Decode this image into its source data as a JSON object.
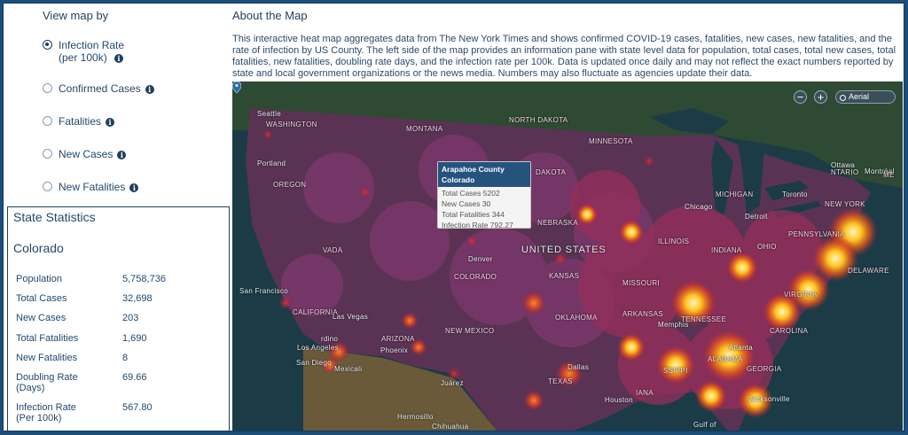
{
  "view_by": {
    "title": "View map by",
    "options": [
      {
        "label_line1": "Infection Rate",
        "label_line2": "(per 100k)",
        "selected": true
      },
      {
        "label_line1": "Confirmed Cases",
        "selected": false
      },
      {
        "label_line1": "Fatalities",
        "selected": false
      },
      {
        "label_line1": "New Cases",
        "selected": false
      },
      {
        "label_line1": "New Fatalities",
        "selected": false
      }
    ],
    "info_glyph": "i"
  },
  "stats": {
    "title": "State Statistics",
    "state": "Colorado",
    "rows": [
      {
        "label": "Population",
        "value": "5,758,736"
      },
      {
        "label": "Total Cases",
        "value": "32,698"
      },
      {
        "label": "New Cases",
        "value": "203"
      },
      {
        "label": "Total Fatalities",
        "value": "1,690"
      },
      {
        "label": "New Fatalities",
        "value": "8"
      },
      {
        "label": "Doubling Rate",
        "label2": "(Days)",
        "value": "69.66"
      },
      {
        "label": "Infection Rate",
        "label2": "(Per 100k)",
        "value": "567.80"
      }
    ]
  },
  "about": {
    "title": "About the Map",
    "text": "This interactive heat map aggregates data from The New York Times and shows confirmed COVID-19 cases, fatalities, new cases, new fatalities, and the rate of infection by US County. The left side of the map provides an information pane with state level data for population, total cases, total new cases, total fatalities, new fatalities, doubling rate days, and the infection rate per 100k. Data is updated once daily and may not reflect the exact numbers reported by state and local government organizations or the news media. Numbers may also fluctuate as agencies update their data."
  },
  "map": {
    "zoom_out": "−",
    "zoom_in": "+",
    "layer": "Aerial",
    "popup": {
      "county": "Arapahoe County",
      "state": "Colorado",
      "total_cases": "Total Cases 5202",
      "new_cases": "New Cases 30",
      "total_fatalities": "Total Fatalities 344",
      "infection_rate": "Infection Rate 792.27"
    },
    "labels": {
      "washington": "WASHINGTON",
      "seattle": "Seattle",
      "portland": "Portland",
      "oregon": "OREGON",
      "montana": "MONTANA",
      "north_dakota": "NORTH DAKOTA",
      "minnesota": "MINNESOTA",
      "dakota": "DAKOTA",
      "nebraska": "NEBRASKA",
      "united_states": "UNITED STATES",
      "denver": "Denver",
      "colorado": "COLORADO",
      "vada": "VADA",
      "san_francisco": "San Francisco",
      "california": "CALIFORNIA",
      "las_vegas": "Las Vegas",
      "los_angeles": "Los Angeles",
      "san_diego": "San Diego",
      "mexicali": "Mexicali",
      "arizona": "ARIZONA",
      "phoenix": "Phoenix",
      "new_mexico": "NEW MEXICO",
      "kansas": "KANSAS",
      "missouri": "MISSOURI",
      "oklahoma": "OKLAHOMA",
      "illinois": "ILLINOIS",
      "indiana": "INDIANA",
      "michigan": "MICHIGAN",
      "detroit": "Detroit",
      "chicago": "Chicago",
      "ohio": "OHIO",
      "pennsylvania": "PENNSYLVANIA",
      "new_york": "NEW YORK",
      "toronto": "Toronto",
      "ottawa": "Ottawa",
      "montreal": "Montréal",
      "ntario": "NTARIO",
      "delaware": "DELAWARE",
      "virginia": "VIRGINIA",
      "tennessee": "TENNESSEE",
      "carolina": "CAROLINA",
      "georgia": "GEORGIA",
      "alabama": "ALABAMA",
      "arkansas": "ARKANSAS",
      "texas": "TEXAS",
      "dallas": "Dallas",
      "houston": "Houston",
      "juarez": "Juárez",
      "hermosillo": "Hermosillo",
      "chihuahua": "Chihuahua",
      "jacksonville": "Jacksonville",
      "atlanta": "Atlanta",
      "memphis": "Memphis",
      "ssippi": "SSIPPI",
      "iana": "IANA",
      "gulf": "Gulf of",
      "maine": "ME",
      "rdino": "rdino"
    }
  },
  "colors": {
    "frame_border": "#1d4e7a",
    "text_primary": "#1f3f5e",
    "map_water": "#1b3c46",
    "heat_low": "#6b2a6a",
    "heat_high": "#ffd23a"
  }
}
